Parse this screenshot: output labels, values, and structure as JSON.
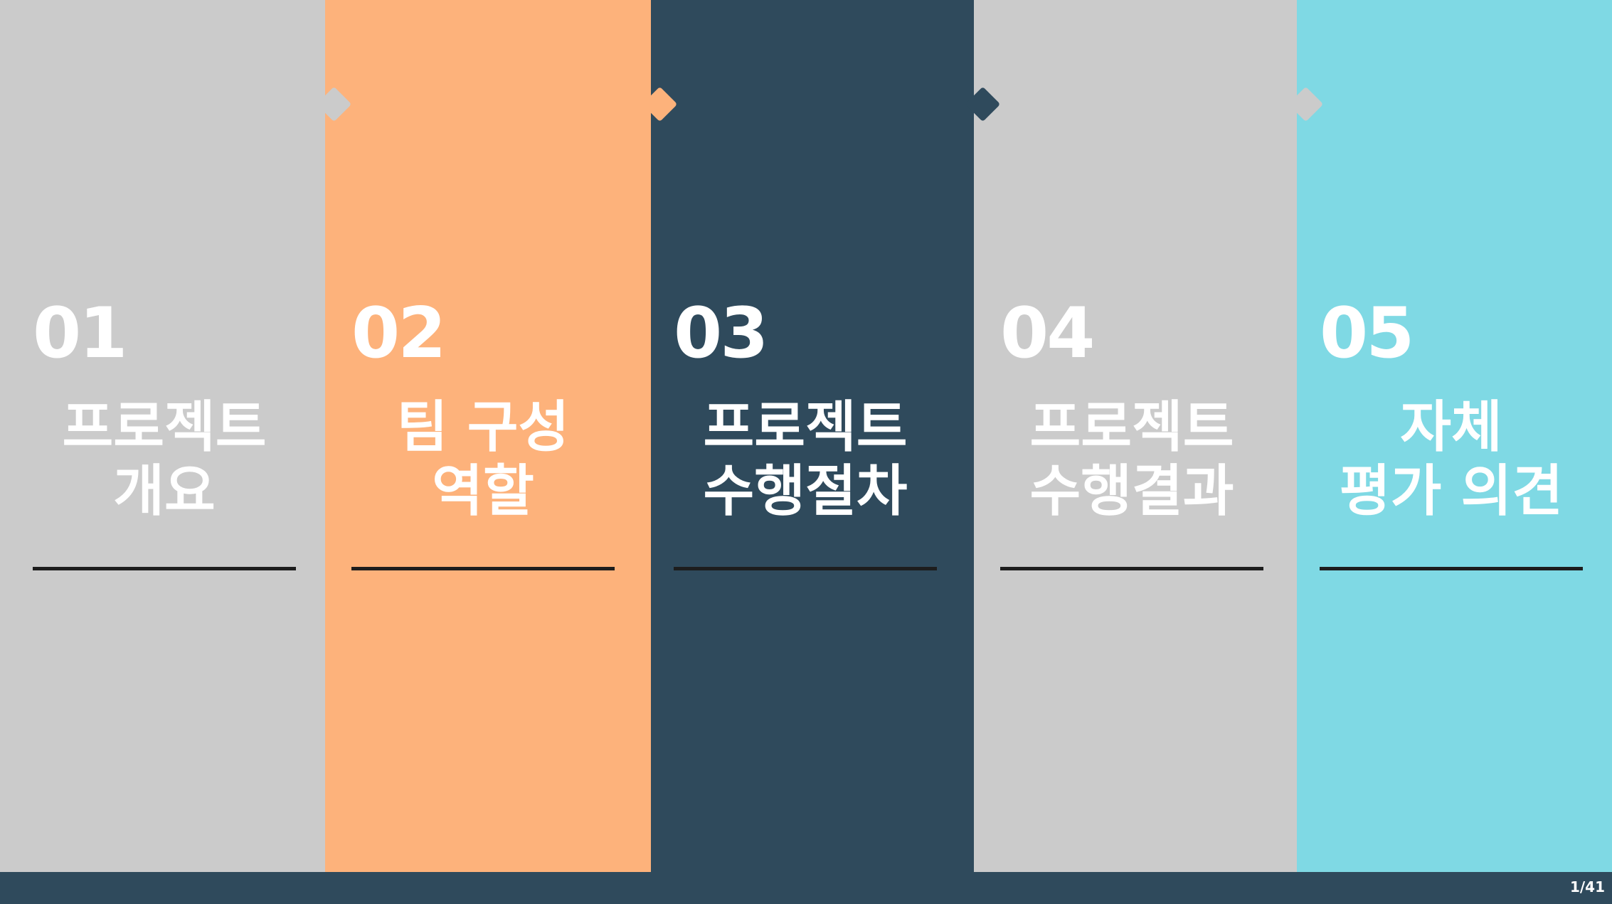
{
  "panels": [
    {
      "number": "01",
      "title": "프로젝트\n개요",
      "color": "#cbcbcb"
    },
    {
      "number": "02",
      "title": "팀 구성\n역할",
      "color": "#fdb27b"
    },
    {
      "number": "03",
      "title": "프로젝트\n수행절차",
      "color": "#2f4a5c"
    },
    {
      "number": "04",
      "title": "프로젝트\n수행결과",
      "color": "#cbcbcb"
    },
    {
      "number": "05",
      "title": "자체\n평가 의견",
      "color": "#7fd9e4"
    }
  ],
  "footer": {
    "page_indicator": "1/41",
    "bar_color": "#2f4a5c"
  }
}
